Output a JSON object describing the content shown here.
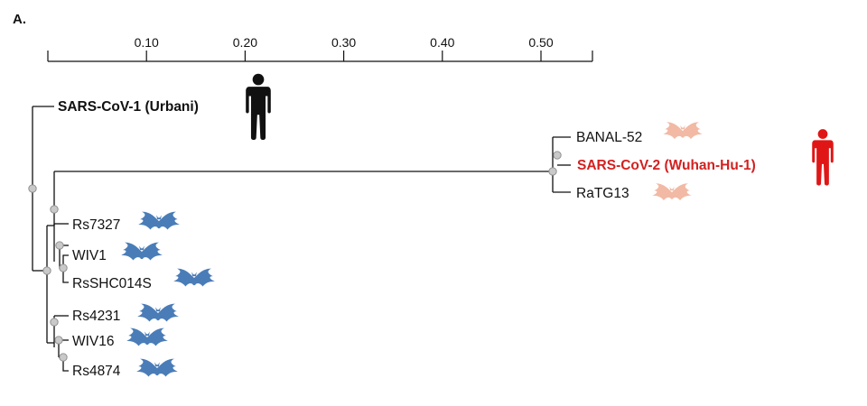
{
  "panel_label": "A.",
  "scale_axis": {
    "ticks": [
      {
        "value": 0.1,
        "label": "0.10"
      },
      {
        "value": 0.2,
        "label": "0.20"
      },
      {
        "value": 0.3,
        "label": "0.30"
      },
      {
        "value": 0.4,
        "label": "0.40"
      },
      {
        "value": 0.5,
        "label": "0.50"
      }
    ]
  },
  "tree": {
    "leaves": [
      {
        "id": "sars1",
        "label": "SARS-CoV-1 (Urbani)",
        "bold": true,
        "color": "#111111",
        "host": "human",
        "host_color": "#111111"
      },
      {
        "id": "banal",
        "label": "BANAL-52",
        "bold": false,
        "color": "#111111",
        "host": "bat",
        "host_color": "#f2b9a4"
      },
      {
        "id": "sars2",
        "label": "SARS-CoV-2 (Wuhan-Hu-1)",
        "bold": true,
        "color": "#d42020",
        "host": "human",
        "host_color": "#e01616"
      },
      {
        "id": "ratg",
        "label": "RaTG13",
        "bold": false,
        "color": "#111111",
        "host": "bat",
        "host_color": "#f2b9a4"
      },
      {
        "id": "rs7327",
        "label": "Rs7327",
        "bold": false,
        "color": "#111111",
        "host": "bat",
        "host_color": "#4a7db8"
      },
      {
        "id": "wiv1",
        "label": "WIV1",
        "bold": false,
        "color": "#111111",
        "host": "bat",
        "host_color": "#4a7db8"
      },
      {
        "id": "rsshc",
        "label": "RsSHC014S",
        "bold": false,
        "color": "#111111",
        "host": "bat",
        "host_color": "#4a7db8"
      },
      {
        "id": "rs4231",
        "label": "Rs4231",
        "bold": false,
        "color": "#111111",
        "host": "bat",
        "host_color": "#4a7db8"
      },
      {
        "id": "wiv16",
        "label": "WIV16",
        "bold": false,
        "color": "#111111",
        "host": "bat",
        "host_color": "#4a7db8"
      },
      {
        "id": "rs4874",
        "label": "Rs4874",
        "bold": false,
        "color": "#111111",
        "host": "bat",
        "host_color": "#4a7db8"
      }
    ]
  }
}
